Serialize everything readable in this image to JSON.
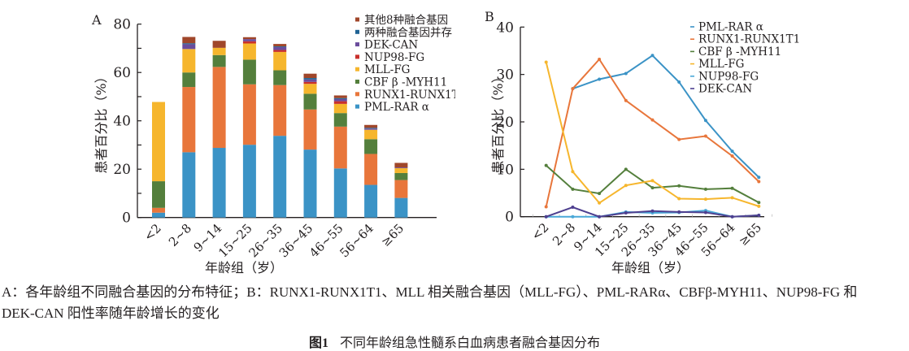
{
  "chart_data": [
    {
      "type": "bar",
      "stacked": true,
      "panel_label": "A",
      "title": "",
      "xlabel": "年龄组（岁）",
      "ylabel": "患者百分比（%）",
      "ylim": [
        0,
        80
      ],
      "yticks": [
        0,
        20,
        40,
        60,
        80
      ],
      "grid": false,
      "legend_position": "top-right",
      "categories": [
        "<2",
        "2~8",
        "9~14",
        "15~25",
        "26~35",
        "36~45",
        "46~55",
        "56~64",
        "≥65"
      ],
      "series": [
        {
          "name": "PML-RAR α",
          "color": "#3b93c6",
          "values": [
            2.0,
            27.0,
            28.8,
            30.1,
            33.8,
            28.1,
            20.3,
            13.5,
            8.1
          ]
        },
        {
          "name": "RUNX1-RUNX1T1",
          "color": "#e8763b",
          "values": [
            2.0,
            27.0,
            33.5,
            25.0,
            21.0,
            16.6,
            17.3,
            12.8,
            7.4
          ]
        },
        {
          "name": "CBF β -MYH11",
          "color": "#547f3c",
          "values": [
            11.0,
            6.0,
            4.9,
            10.2,
            6.1,
            6.5,
            5.6,
            6.1,
            2.9
          ]
        },
        {
          "name": "MLL-FG",
          "color": "#f6b62d",
          "values": [
            32.8,
            9.7,
            3.0,
            6.7,
            7.6,
            4.1,
            3.8,
            3.9,
            2.0
          ]
        },
        {
          "name": "NUP98-FG",
          "color": "#c9302c",
          "values": [
            0,
            0,
            0,
            0.9,
            0.8,
            0.8,
            1.1,
            0,
            0
          ]
        },
        {
          "name": "DEK-CAN",
          "color": "#6a4c9c",
          "values": [
            0,
            2.0,
            0,
            0.9,
            1.2,
            1.0,
            0.9,
            0.5,
            0.3
          ]
        },
        {
          "name": "两种融合基因并存",
          "color": "#1f6394",
          "values": [
            0,
            0.4,
            0,
            0,
            0.3,
            0.6,
            0.4,
            0.3,
            0
          ]
        },
        {
          "name": "其他8种融合基因",
          "color": "#a0462a",
          "values": [
            0,
            2.6,
            2.9,
            0.8,
            1.0,
            1.8,
            1.1,
            1.2,
            1.9
          ]
        }
      ],
      "legend_order": [
        "其他8种融合基因",
        "两种融合基因并存",
        "DEK-CAN",
        "NUP98-FG",
        "MLL-FG",
        "CBF β -MYH11",
        "RUNX1-RUNX1T1",
        "PML-RAR α"
      ]
    },
    {
      "type": "line",
      "panel_label": "B",
      "title": "",
      "xlabel": "年龄组（岁）",
      "ylabel": "患者百分比（%）",
      "ylim": [
        0,
        40
      ],
      "yticks": [
        0,
        10,
        20,
        30,
        40
      ],
      "grid": false,
      "legend_position": "top-right",
      "categories": [
        "<2",
        "2~8",
        "9~14",
        "15~25",
        "26~35",
        "36~45",
        "46~55",
        "56~64",
        "≥65"
      ],
      "series": [
        {
          "name": "PML-RAR α",
          "color": "#3b93c6",
          "values": [
            null,
            27.0,
            29.0,
            30.2,
            34.0,
            28.4,
            20.3,
            13.8,
            8.3
          ]
        },
        {
          "name": "RUNX1-RUNX1T1",
          "color": "#e8763b",
          "values": [
            2.1,
            27.0,
            33.2,
            24.5,
            20.4,
            16.3,
            17.0,
            12.8,
            7.4
          ]
        },
        {
          "name": "CBF β -MYH11",
          "color": "#547f3c",
          "values": [
            10.8,
            5.8,
            4.9,
            10.0,
            6.1,
            6.5,
            5.8,
            6.0,
            3.0
          ]
        },
        {
          "name": "MLL-FG",
          "color": "#f6b62d",
          "values": [
            32.6,
            9.5,
            2.9,
            6.6,
            7.6,
            3.8,
            3.7,
            4.0,
            2.2
          ]
        },
        {
          "name": "NUP98-FG",
          "color": "#4aa8d8",
          "values": [
            0,
            0,
            0,
            1.0,
            0.8,
            0.9,
            1.3,
            0,
            0.3
          ]
        },
        {
          "name": "DEK-CAN",
          "color": "#4e3f8f",
          "values": [
            0,
            2.0,
            0,
            0.8,
            1.2,
            1.0,
            0.9,
            0,
            0.3
          ]
        }
      ]
    }
  ],
  "captions": {
    "line1": "A：各年龄组不同融合基因的分布特征；B：RUNX1-RUNX1T1、MLL 相关融合基因（MLL-FG）、PML-RARα、CBFβ-MYH11、NUP98-FG 和",
    "line2": "DEK-CAN 阳性率随年龄增长的变化",
    "figure_label": "图1",
    "figure_title": "不同年龄组急性髓系白血病患者融合基因分布"
  }
}
